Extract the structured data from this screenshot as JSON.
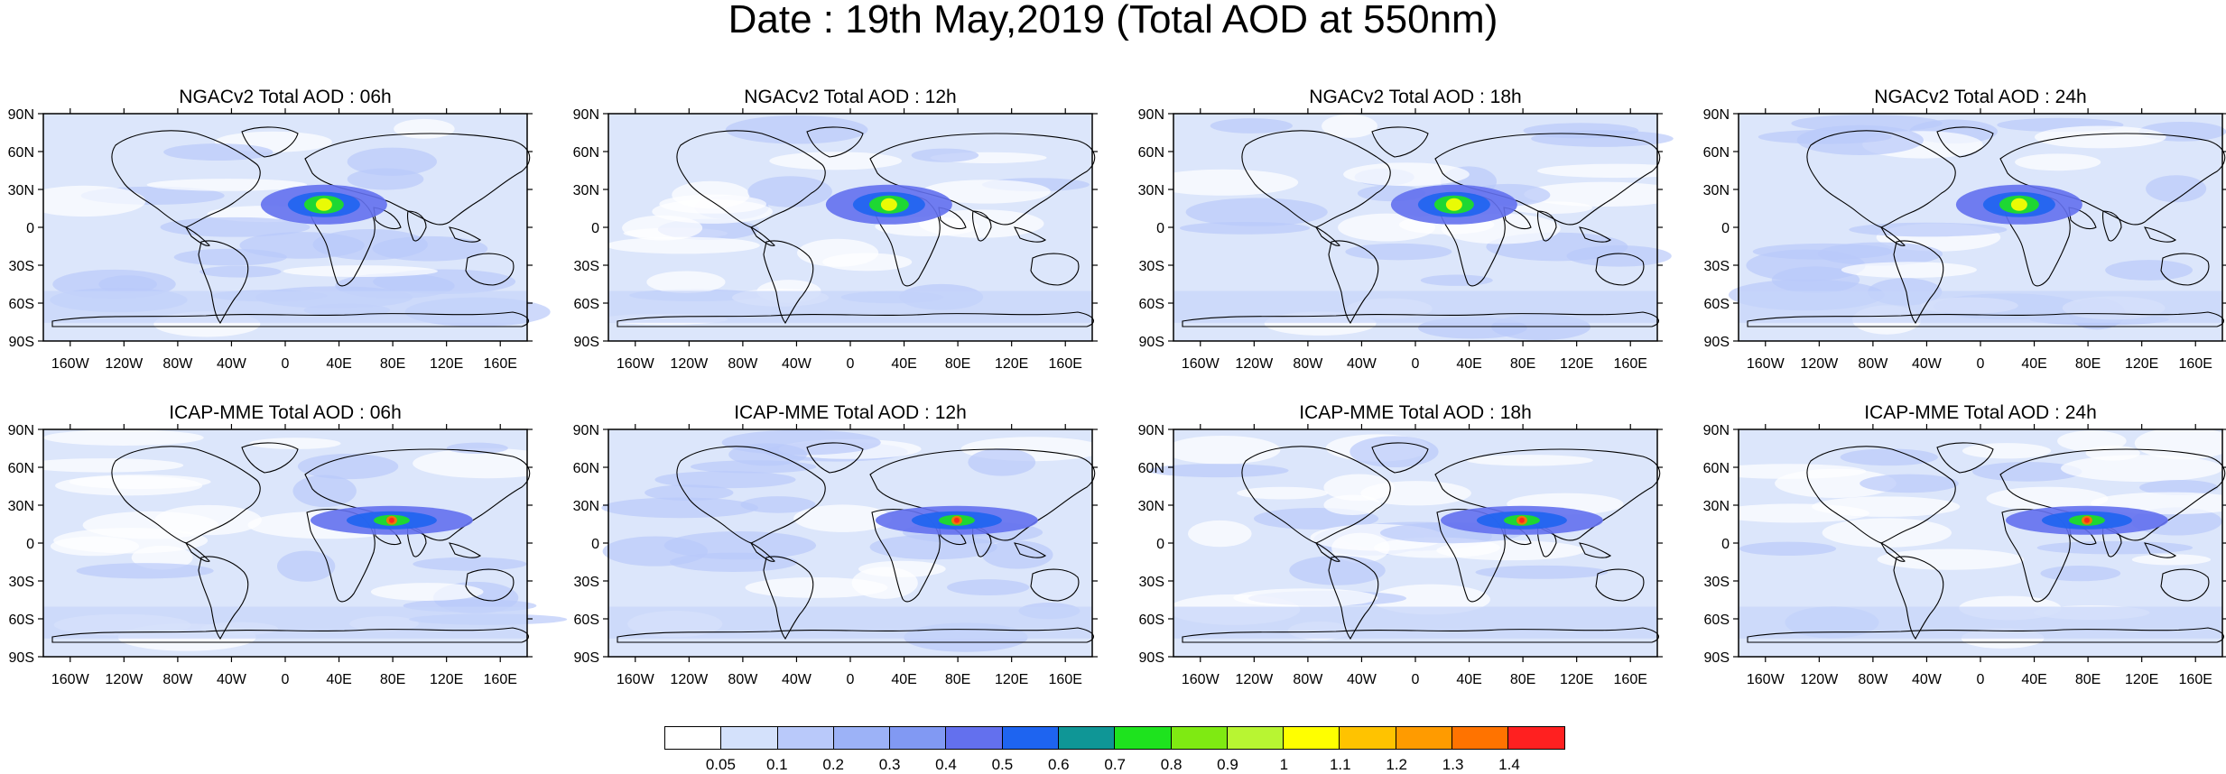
{
  "title": "Date : 19th May,2019 (Total AOD at 550nm)",
  "panels": [
    {
      "title": "NGACv2 Total AOD : 06h",
      "model": "NGACv2",
      "hour": "06h"
    },
    {
      "title": "NGACv2 Total AOD : 12h",
      "model": "NGACv2",
      "hour": "12h"
    },
    {
      "title": "NGACv2 Total AOD : 18h",
      "model": "NGACv2",
      "hour": "18h"
    },
    {
      "title": "NGACv2 Total AOD : 24h",
      "model": "NGACv2",
      "hour": "24h"
    },
    {
      "title": "ICAP-MME Total AOD : 06h",
      "model": "ICAP-MME",
      "hour": "06h"
    },
    {
      "title": "ICAP-MME Total AOD : 12h",
      "model": "ICAP-MME",
      "hour": "12h"
    },
    {
      "title": "ICAP-MME Total AOD : 18h",
      "model": "ICAP-MME",
      "hour": "18h"
    },
    {
      "title": "ICAP-MME Total AOD : 24h",
      "model": "ICAP-MME",
      "hour": "24h"
    }
  ],
  "lat_ticks": [
    "90N",
    "60N",
    "30N",
    "0",
    "30S",
    "60S",
    "90S"
  ],
  "lon_ticks": [
    "160W",
    "120W",
    "80W",
    "40W",
    "0",
    "40E",
    "80E",
    "120E",
    "160E"
  ],
  "colorbar": {
    "labels": [
      "0.05",
      "0.1",
      "0.2",
      "0.3",
      "0.4",
      "0.5",
      "0.6",
      "0.7",
      "0.8",
      "0.9",
      "1",
      "1.1",
      "1.2",
      "1.3",
      "1.4"
    ],
    "colors": [
      "#ffffff",
      "#d4e1fb",
      "#b9c9fa",
      "#9cb2f7",
      "#8199f3",
      "#6370ee",
      "#1e64f0",
      "#0f9696",
      "#1ee31e",
      "#7fea12",
      "#b8f532",
      "#ffff00",
      "#ffc300",
      "#ff9b00",
      "#ff7300",
      "#ff2020"
    ]
  }
}
